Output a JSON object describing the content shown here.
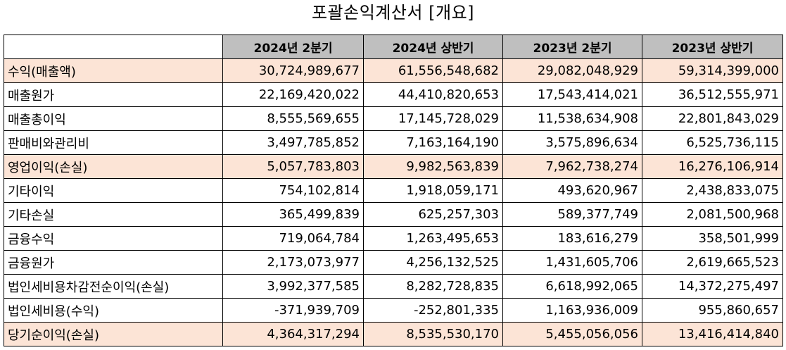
{
  "title": "포괄손익계산서 [개요]",
  "columns": [
    "2024년 2분기",
    "2024년 상반기",
    "2023년 2분기",
    "2023년 상반기"
  ],
  "rows": [
    {
      "label": "수익(매출액)",
      "highlight": true,
      "values": [
        "30,724,989,677",
        "61,556,548,682",
        "29,082,048,929",
        "59,314,399,000"
      ]
    },
    {
      "label": "매출원가",
      "highlight": false,
      "values": [
        "22,169,420,022",
        "44,410,820,653",
        "17,543,414,021",
        "36,512,555,971"
      ]
    },
    {
      "label": "매출총이익",
      "highlight": false,
      "values": [
        "8,555,569,655",
        "17,145,728,029",
        "11,538,634,908",
        "22,801,843,029"
      ]
    },
    {
      "label": "판매비와관리비",
      "highlight": false,
      "values": [
        "3,497,785,852",
        "7,163,164,190",
        "3,575,896,634",
        "6,525,736,115"
      ]
    },
    {
      "label": "영업이익(손실)",
      "highlight": true,
      "values": [
        "5,057,783,803",
        "9,982,563,839",
        "7,962,738,274",
        "16,276,106,914"
      ]
    },
    {
      "label": "기타이익",
      "highlight": false,
      "values": [
        "754,102,814",
        "1,918,059,171",
        "493,620,967",
        "2,438,833,075"
      ]
    },
    {
      "label": "기타손실",
      "highlight": false,
      "values": [
        "365,499,839",
        "625,257,303",
        "589,377,749",
        "2,081,500,968"
      ]
    },
    {
      "label": "금융수익",
      "highlight": false,
      "values": [
        "719,064,784",
        "1,263,495,653",
        "183,616,279",
        "358,501,999"
      ]
    },
    {
      "label": "금융원가",
      "highlight": false,
      "values": [
        "2,173,073,977",
        "4,256,132,525",
        "1,431,605,706",
        "2,619,665,523"
      ]
    },
    {
      "label": "법인세비용차감전순이익(손실)",
      "highlight": false,
      "values": [
        "3,992,377,585",
        "8,282,728,835",
        "6,618,992,065",
        "14,372,275,497"
      ]
    },
    {
      "label": "법인세비용(수익)",
      "highlight": false,
      "values": [
        "-371,939,709",
        "-252,801,335",
        "1,163,936,009",
        "955,860,657"
      ]
    },
    {
      "label": "당기순이익(손실)",
      "highlight": true,
      "values": [
        "4,364,317,294",
        "8,535,530,170",
        "5,455,056,056",
        "13,416,414,840"
      ]
    }
  ],
  "colors": {
    "header_bg": "#bfbfbf",
    "highlight_bg": "#fce4d6",
    "border": "#000000"
  }
}
